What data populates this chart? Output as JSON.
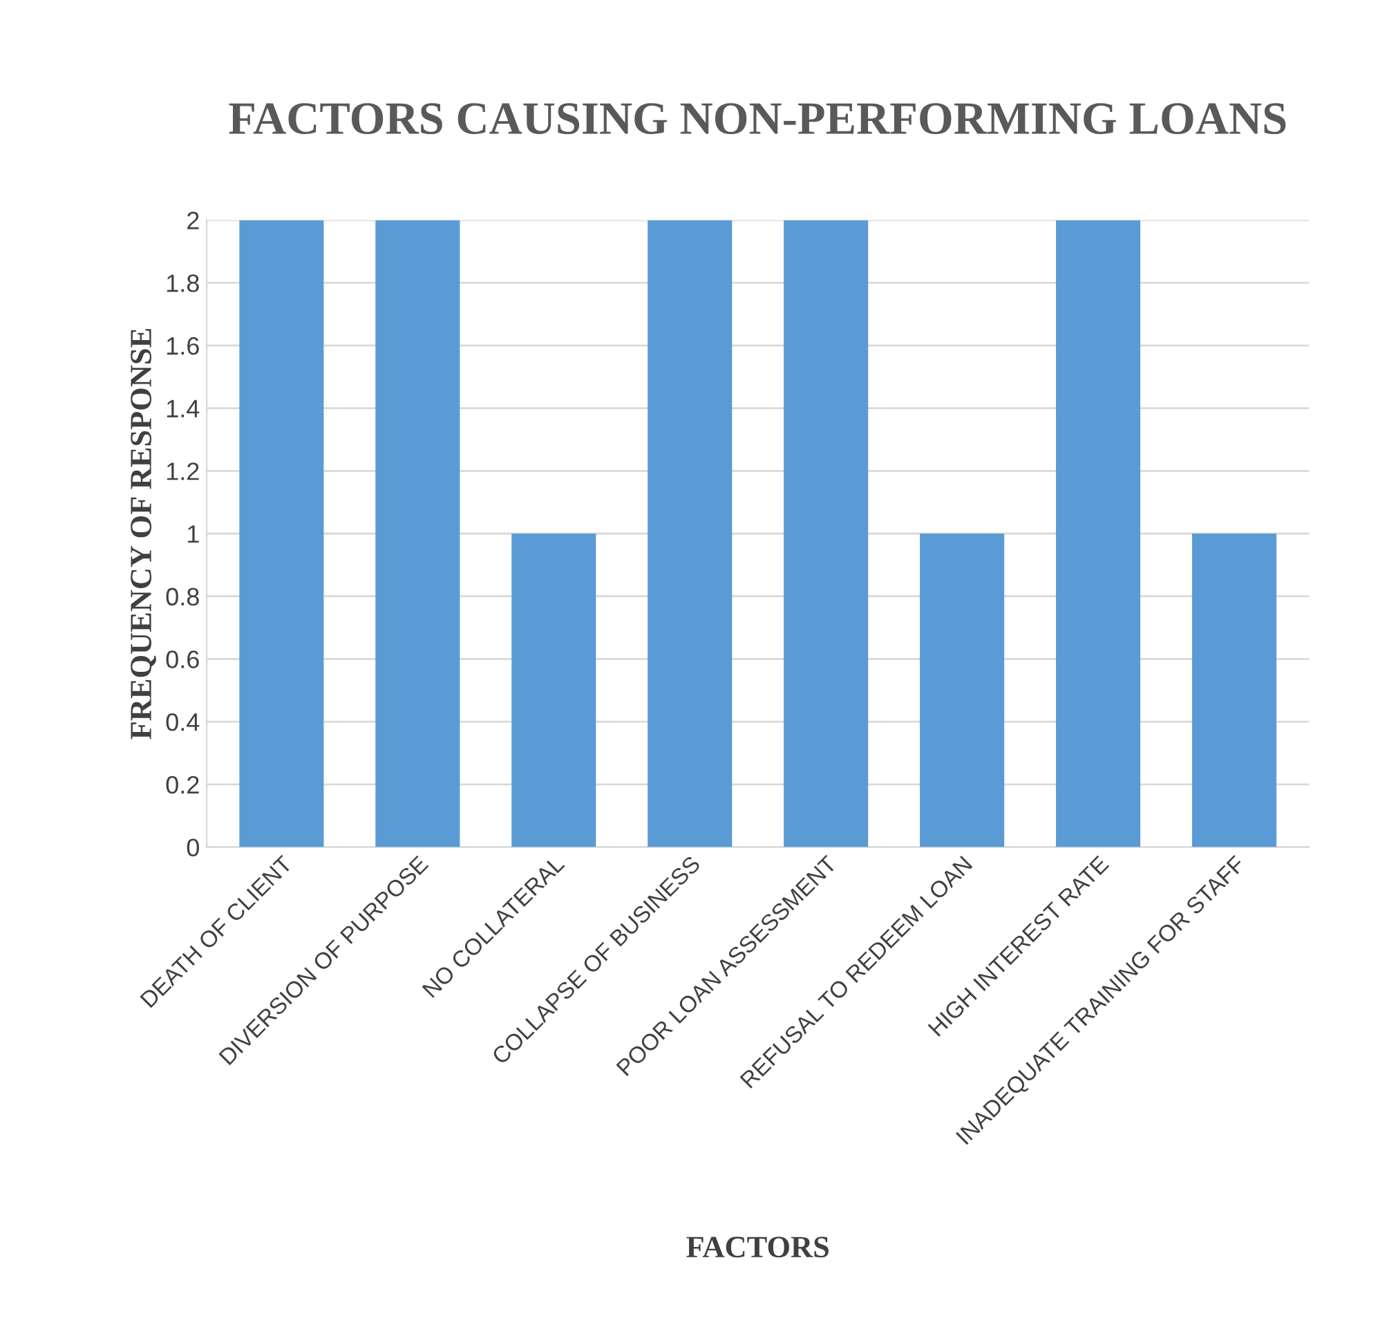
{
  "chart_data": {
    "type": "bar",
    "title": "FACTORS CAUSING NON-PERFORMING LOANS",
    "xlabel": "FACTORS",
    "ylabel": "FREQUENCY OF RESPONSE",
    "categories": [
      "DEATH OF CLIENT",
      "DIVERSION OF PURPOSE",
      "NO COLLATERAL",
      "COLLAPSE OF BUSINESS",
      "POOR LOAN ASSESSMENT",
      "REFUSAL TO REDEEM LOAN",
      "HIGH INTEREST RATE",
      "INADEQUATE TRAINING FOR STAFF"
    ],
    "values": [
      2,
      2,
      1,
      2,
      2,
      1,
      2,
      1
    ],
    "color": "#5b9bd5",
    "ylim": [
      0,
      2
    ],
    "yticks": [
      0,
      0.2,
      0.4,
      0.6,
      0.8,
      1,
      1.2,
      1.4,
      1.6,
      1.8,
      2
    ],
    "grid": "y",
    "legend": false
  }
}
